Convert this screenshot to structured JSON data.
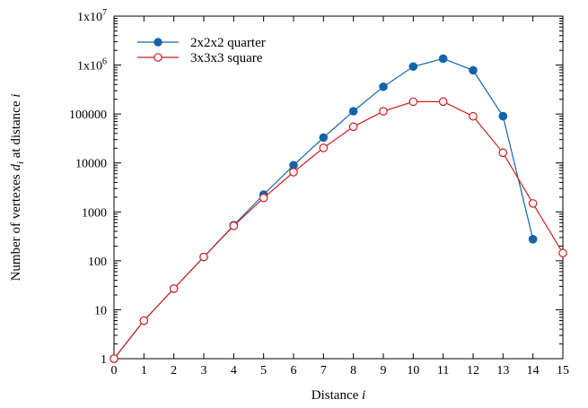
{
  "chart_data": {
    "type": "line",
    "xlabel": "Distance",
    "xlabel_italic": "i",
    "ylabel": "Number of vertexes",
    "ylabel_var": "d",
    "ylabel_sub": "i",
    "ylabel_suffix": "at distance",
    "ylabel_italic": "i",
    "xlim": [
      0,
      15
    ],
    "ylim": [
      1,
      10000000
    ],
    "yscale": "log",
    "grid": false,
    "legend_position": "top-left",
    "x_ticks": [
      "0",
      "1",
      "2",
      "3",
      "4",
      "5",
      "6",
      "7",
      "8",
      "9",
      "10",
      "11",
      "12",
      "13",
      "14",
      "15"
    ],
    "y_ticks": [
      {
        "value": 1,
        "label": "1"
      },
      {
        "value": 10,
        "label": "10"
      },
      {
        "value": 100,
        "label": "100"
      },
      {
        "value": 1000,
        "label": "1000"
      },
      {
        "value": 10000,
        "label": "10000"
      },
      {
        "value": 100000,
        "label": "100000"
      },
      {
        "value": 1000000,
        "base": "1x10",
        "exp": "6"
      },
      {
        "value": 10000000,
        "base": "1x10",
        "exp": "7"
      }
    ],
    "series": [
      {
        "name": "2x2x2 quarter",
        "color": "#1464a8",
        "marker": "filled-circle",
        "x": [
          0,
          1,
          2,
          3,
          4,
          5,
          6,
          7,
          8,
          9,
          10,
          11,
          12,
          13,
          14
        ],
        "values": [
          1,
          6,
          27,
          120,
          534,
          2256,
          8969,
          33058,
          114149,
          360508,
          930588,
          1350852,
          782536,
          90280,
          276
        ]
      },
      {
        "name": "3x3x3 square",
        "color": "#cc1f1f",
        "marker": "open-circle",
        "x": [
          0,
          1,
          2,
          3,
          4,
          5,
          6,
          7,
          8,
          9,
          10,
          11,
          12,
          13,
          14,
          15
        ],
        "values": [
          1,
          6,
          27,
          120,
          519,
          1932,
          6484,
          20310,
          55034,
          113892,
          178495,
          179196,
          89728,
          16176,
          1488,
          144
        ]
      }
    ]
  }
}
